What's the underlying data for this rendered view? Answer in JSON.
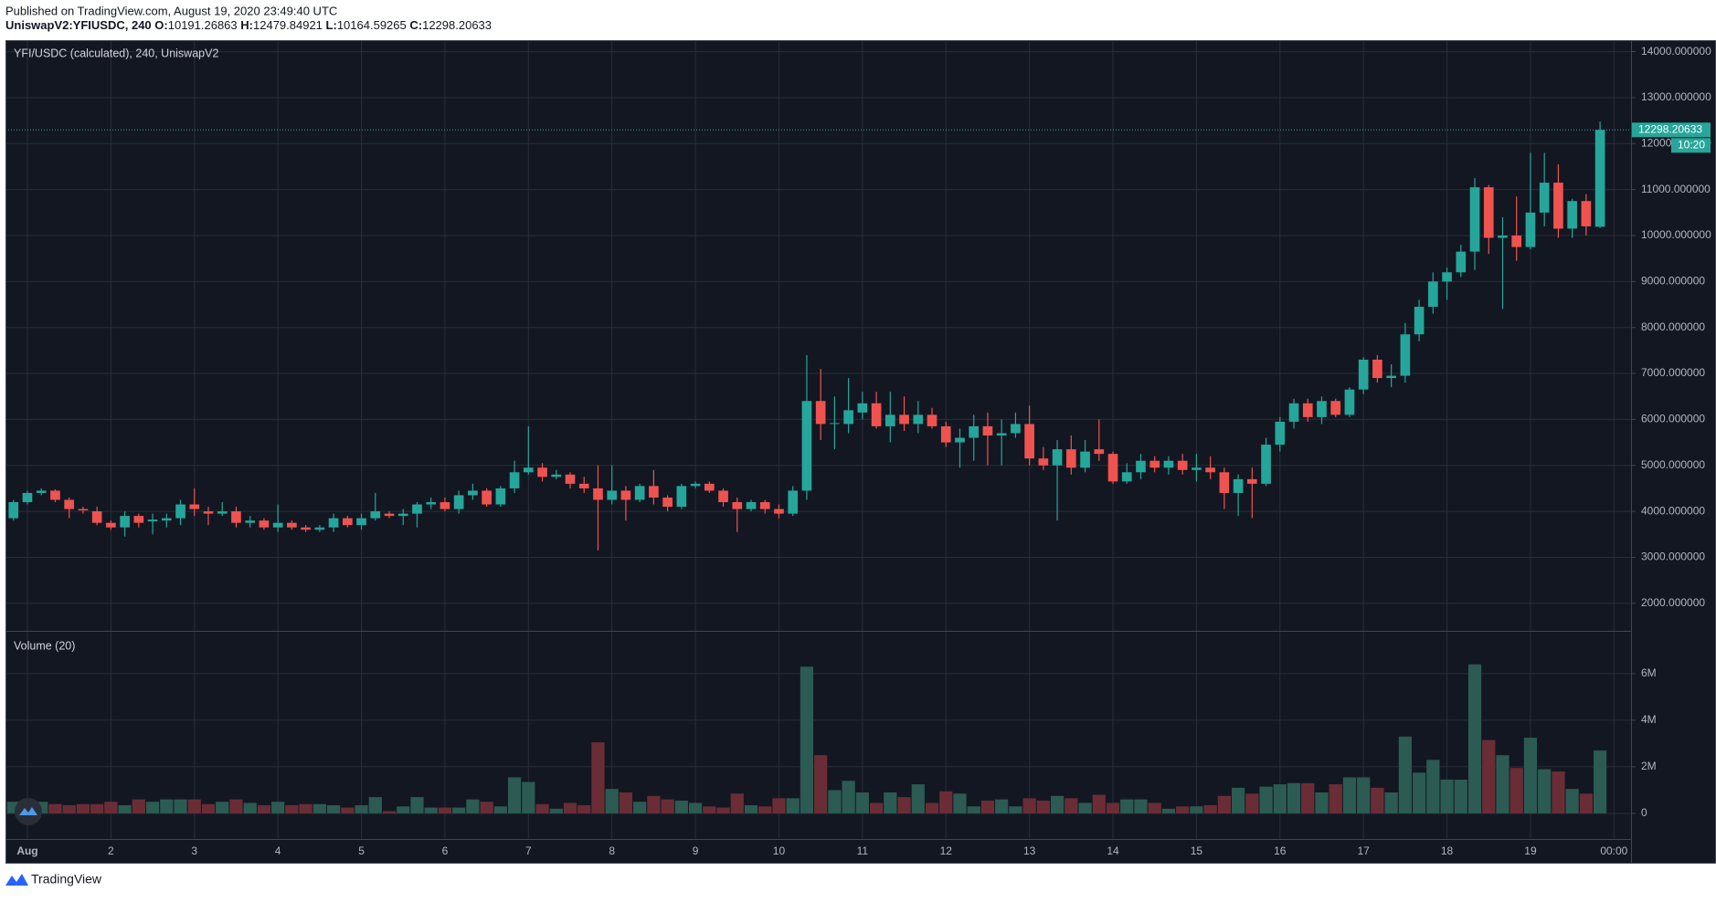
{
  "chart_data": {
    "type": "candlestick",
    "published": "Published on TradingView.com, August 19, 2020 23:49:40 UTC",
    "symbol": "UniswapV2:YFIUSDC, 240",
    "ohlc_labels": [
      "O:",
      "H:",
      "L:",
      "C:"
    ],
    "title": "YFI/USDC (calculated), 240, UniswapV2",
    "volume_title": "Volume (20)",
    "countdown": "10:20",
    "branding": "TradingView",
    "up_color": "#26a69a",
    "down_color": "#ef5350",
    "volume_up_color": "#2b5b52",
    "volume_down_color": "#6a2d35",
    "grid": true,
    "x": [
      -4,
      0,
      4,
      8,
      12,
      16,
      20,
      24,
      28,
      32,
      36,
      40,
      44,
      48,
      52,
      56,
      60,
      64,
      68,
      72,
      76,
      80,
      84,
      88,
      92,
      96,
      100,
      104,
      108,
      112,
      116,
      120,
      124,
      128,
      132,
      136,
      140,
      144,
      148,
      152,
      156,
      160,
      164,
      168,
      172,
      176,
      180,
      184,
      188,
      192,
      196,
      200,
      204,
      208,
      212,
      216,
      220,
      224,
      228,
      232,
      236,
      240,
      244,
      248,
      252,
      256,
      260,
      264,
      268,
      272,
      276,
      280,
      284,
      288,
      292,
      296,
      300,
      304,
      308,
      312,
      316,
      320,
      324,
      328,
      332,
      336,
      340,
      344,
      348,
      352,
      356,
      360,
      364,
      368,
      372,
      376,
      380,
      384,
      388,
      392,
      396,
      400,
      404,
      408,
      412,
      416,
      420,
      424,
      428,
      432,
      436,
      440,
      444,
      448,
      452
    ],
    "open": [
      3850,
      4200,
      4400,
      4450,
      4250,
      4050,
      4000,
      3750,
      3650,
      3900,
      3780,
      3800,
      3850,
      4150,
      4000,
      3950,
      4000,
      3750,
      3800,
      3650,
      3750,
      3650,
      3600,
      3650,
      3850,
      3700,
      3850,
      3950,
      3900,
      3950,
      4150,
      4200,
      4050,
      4350,
      4450,
      4150,
      4500,
      4850,
      4950,
      4750,
      4800,
      4600,
      4500,
      4250,
      4450,
      4250,
      4550,
      4300,
      4100,
      4550,
      4600,
      4450,
      4200,
      4050,
      4200,
      4050,
      3950,
      4450,
      6400,
      5900,
      5900,
      6150,
      6350,
      5850,
      6100,
      5900,
      6100,
      5850,
      5500,
      5600,
      5850,
      5650,
      5700,
      5900,
      5150,
      5000,
      5350,
      4950,
      5350,
      5250,
      4650,
      4850,
      5100,
      4950,
      5100,
      4900,
      4950,
      4850,
      4400,
      4700,
      4600,
      5450,
      5950,
      6350,
      6050,
      6400,
      6100,
      6650,
      7300,
      6900,
      6950,
      7850,
      8450,
      9000,
      9200,
      9650,
      11050,
      9950,
      10000,
      9750,
      10500,
      11150,
      10150,
      10750,
      10191.26863
    ],
    "high": [
      4250,
      4450,
      4500,
      4480,
      4300,
      4100,
      4100,
      3800,
      4000,
      3950,
      3950,
      3950,
      4250,
      4500,
      4100,
      4200,
      4100,
      3900,
      3850,
      4150,
      3800,
      3700,
      3700,
      3950,
      3900,
      3950,
      4400,
      4000,
      4050,
      4200,
      4300,
      4300,
      4450,
      4600,
      4500,
      4550,
      5100,
      5850,
      5050,
      4900,
      4850,
      4750,
      5000,
      5000,
      4550,
      4600,
      4900,
      4350,
      4600,
      4650,
      4650,
      4500,
      4300,
      4250,
      4250,
      4150,
      4550,
      7400,
      7100,
      6500,
      6900,
      6600,
      6600,
      6600,
      6500,
      6400,
      6250,
      5950,
      5800,
      6100,
      6150,
      6000,
      6150,
      6300,
      5400,
      5550,
      5650,
      5550,
      6000,
      5300,
      5050,
      5250,
      5200,
      5200,
      5250,
      5250,
      5200,
      4950,
      4800,
      4950,
      5600,
      6050,
      6450,
      6450,
      6500,
      6450,
      6700,
      7350,
      7400,
      7200,
      8100,
      8600,
      9200,
      9300,
      9800,
      11250,
      11100,
      10400,
      10850,
      11800,
      11800,
      11550,
      10800,
      10900,
      12479.84921
    ],
    "low": [
      3800,
      4150,
      4350,
      4200,
      3850,
      3950,
      3700,
      3600,
      3450,
      3650,
      3500,
      3650,
      3700,
      3900,
      3700,
      3900,
      3650,
      3650,
      3600,
      3550,
      3600,
      3550,
      3550,
      3550,
      3650,
      3600,
      3800,
      3850,
      3700,
      3650,
      4050,
      4000,
      3950,
      4250,
      4100,
      4100,
      4400,
      4800,
      4650,
      4700,
      4500,
      4400,
      3150,
      4150,
      3800,
      4200,
      4150,
      4000,
      4050,
      4500,
      4400,
      4100,
      3550,
      4000,
      3950,
      3850,
      3900,
      4250,
      5550,
      5350,
      5700,
      6000,
      5800,
      5500,
      5750,
      5700,
      5800,
      5400,
      4950,
      5100,
      5000,
      5000,
      5600,
      5000,
      4900,
      3800,
      4800,
      4850,
      5100,
      4600,
      4600,
      4700,
      4850,
      4800,
      4800,
      4650,
      4700,
      4050,
      3900,
      3850,
      4550,
      5300,
      5800,
      5950,
      5900,
      6050,
      6050,
      6550,
      6800,
      6700,
      6800,
      7700,
      8300,
      8600,
      9100,
      9250,
      9600,
      8400,
      9450,
      9700,
      10200,
      9950,
      9950,
      10000,
      10164.59265
    ],
    "close": [
      4200,
      4400,
      4450,
      4250,
      4050,
      4020,
      3750,
      3650,
      3900,
      3750,
      3820,
      3850,
      4150,
      4050,
      3950,
      4000,
      3750,
      3800,
      3650,
      3750,
      3650,
      3600,
      3650,
      3850,
      3700,
      3850,
      4000,
      3900,
      3950,
      4150,
      4200,
      4050,
      4350,
      4450,
      4150,
      4500,
      4850,
      4950,
      4750,
      4800,
      4600,
      4500,
      4250,
      4450,
      4250,
      4550,
      4300,
      4100,
      4550,
      4600,
      4450,
      4200,
      4050,
      4200,
      4050,
      3950,
      4450,
      6400,
      5900,
      5920,
      6200,
      6350,
      5850,
      6100,
      5900,
      6100,
      5850,
      5500,
      5600,
      5850,
      5650,
      5700,
      5900,
      5150,
      5000,
      5350,
      4950,
      5300,
      5250,
      4650,
      4850,
      5100,
      4950,
      5100,
      4900,
      4950,
      4850,
      4400,
      4700,
      4600,
      5450,
      5950,
      6350,
      6050,
      6400,
      6100,
      6650,
      7300,
      6900,
      6950,
      7850,
      8450,
      9000,
      9200,
      9650,
      11050,
      9950,
      10000,
      9750,
      10500,
      11150,
      10150,
      10750,
      10200,
      12298.20633
    ],
    "volume": [
      500000,
      300000,
      500000,
      400000,
      350000,
      400000,
      400000,
      500000,
      350000,
      600000,
      500000,
      600000,
      600000,
      600000,
      400000,
      500000,
      600000,
      450000,
      350000,
      500000,
      350000,
      400000,
      400000,
      350000,
      250000,
      350000,
      700000,
      100000,
      300000,
      700000,
      250000,
      250000,
      250000,
      600000,
      500000,
      300000,
      1550000,
      1350000,
      400000,
      200000,
      450000,
      350000,
      3050000,
      1050000,
      900000,
      500000,
      750000,
      600000,
      550000,
      450000,
      300000,
      250000,
      850000,
      350000,
      300000,
      650000,
      650000,
      6300000,
      2500000,
      1000000,
      1400000,
      900000,
      450000,
      900000,
      700000,
      1250000,
      450000,
      950000,
      850000,
      300000,
      550000,
      600000,
      300000,
      650000,
      550000,
      750000,
      650000,
      450000,
      800000,
      450000,
      600000,
      600000,
      450000,
      200000,
      300000,
      300000,
      350000,
      750000,
      1100000,
      850000,
      1150000,
      1250000,
      1300000,
      1300000,
      900000,
      1250000,
      1550000,
      1550000,
      1100000,
      900000,
      3300000,
      1750000,
      2300000,
      1450000,
      1450000,
      6400000,
      3150000,
      2500000,
      1950000,
      3250000,
      1900000,
      1800000,
      1050000,
      850000,
      2700000
    ],
    "xlim": [
      -6.3,
      460.9
    ],
    "xticks": [
      {
        "value": 0,
        "label": "Aug"
      },
      {
        "value": 24,
        "label": "2"
      },
      {
        "value": 48,
        "label": "3"
      },
      {
        "value": 72,
        "label": "4"
      },
      {
        "value": 96,
        "label": "5"
      },
      {
        "value": 120,
        "label": "6"
      },
      {
        "value": 144,
        "label": "7"
      },
      {
        "value": 168,
        "label": "8"
      },
      {
        "value": 192,
        "label": "9"
      },
      {
        "value": 216,
        "label": "10"
      },
      {
        "value": 240,
        "label": "11"
      },
      {
        "value": 264,
        "label": "12"
      },
      {
        "value": 288,
        "label": "13"
      },
      {
        "value": 312,
        "label": "14"
      },
      {
        "value": 336,
        "label": "15"
      },
      {
        "value": 360,
        "label": "16"
      },
      {
        "value": 384,
        "label": "17"
      },
      {
        "value": 408,
        "label": "18"
      },
      {
        "value": 432,
        "label": "19"
      },
      {
        "value": 456,
        "label": "00:00"
      }
    ],
    "ylim": [
      1400,
      14250
    ],
    "yticks": [
      {
        "value": 2000,
        "label": "2000.000000"
      },
      {
        "value": 3000,
        "label": "3000.000000"
      },
      {
        "value": 4000,
        "label": "4000.000000"
      },
      {
        "value": 5000,
        "label": "5000.000000"
      },
      {
        "value": 6000,
        "label": "6000.000000"
      },
      {
        "value": 7000,
        "label": "7000.000000"
      },
      {
        "value": 8000,
        "label": "8000.000000"
      },
      {
        "value": 9000,
        "label": "9000.000000"
      },
      {
        "value": 10000,
        "label": "10000.000000"
      },
      {
        "value": 11000,
        "label": "11000.000000"
      },
      {
        "value": 12000,
        "label": "12000.000000"
      },
      {
        "value": 13000,
        "label": "13000.000000"
      },
      {
        "value": 14000,
        "label": "14000.000000"
      }
    ],
    "volume_ylim": [
      -1100000,
      7800000
    ],
    "volume_yticks": [
      0,
      {
        "value": 2000000,
        "label": "2M"
      },
      {
        "value": 4000000,
        "label": "4M"
      },
      {
        "value": 6000000,
        "label": "6M"
      }
    ]
  }
}
